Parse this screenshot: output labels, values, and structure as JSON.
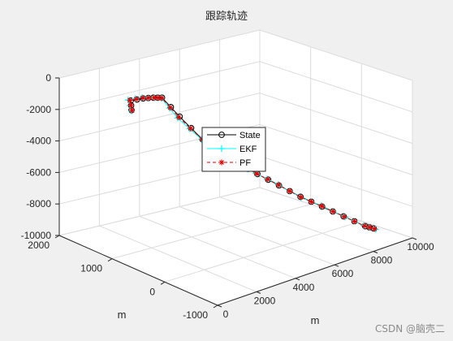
{
  "chart_data": {
    "type": "line3d",
    "title": "跟踪轨迹",
    "xlabel": "m",
    "ylabel": "m",
    "zlabel": "",
    "xlim": [
      0,
      10000
    ],
    "ylim": [
      -1000,
      2000
    ],
    "zlim": [
      -10000,
      0
    ],
    "x_ticks": [
      "0",
      "2000",
      "4000",
      "6000",
      "8000",
      "10000"
    ],
    "y_ticks": [
      "-1000",
      "0",
      "1000",
      "2000"
    ],
    "z_ticks": [
      "0",
      "-2000",
      "-4000",
      "-6000",
      "-8000",
      "-10000"
    ],
    "legend_position": "center",
    "series": [
      {
        "name": "State",
        "color": "#000000",
        "marker": "circle",
        "line": "solid",
        "points": [
          [
            1000,
            1000,
            -1000
          ],
          [
            1500,
            1200,
            -900
          ],
          [
            2000,
            1150,
            -900
          ],
          [
            2400,
            1100,
            -950
          ],
          [
            2700,
            1050,
            -1000
          ],
          [
            3200,
            900,
            -2200
          ],
          [
            3700,
            650,
            -3500
          ],
          [
            4300,
            500,
            -4400
          ],
          [
            5000,
            450,
            -5300
          ],
          [
            5700,
            350,
            -6100
          ],
          [
            6400,
            200,
            -6900
          ],
          [
            7100,
            50,
            -7700
          ],
          [
            7800,
            -100,
            -8400
          ],
          [
            8500,
            -250,
            -9100
          ],
          [
            9200,
            -400,
            -9800
          ],
          [
            9500,
            -450,
            -10000
          ]
        ]
      },
      {
        "name": "EKF",
        "color": "#00ffff",
        "marker": "plus",
        "line": "solid",
        "points": [
          [
            950,
            980,
            -1000
          ],
          [
            1450,
            1230,
            -880
          ],
          [
            2000,
            1170,
            -870
          ],
          [
            2400,
            1080,
            -930
          ],
          [
            2750,
            1080,
            -1100
          ],
          [
            3150,
            920,
            -2300
          ],
          [
            3700,
            670,
            -3520
          ],
          [
            4320,
            520,
            -4380
          ],
          [
            5020,
            430,
            -5320
          ],
          [
            5680,
            370,
            -6080
          ],
          [
            6420,
            220,
            -6880
          ],
          [
            7080,
            30,
            -7720
          ],
          [
            7820,
            -80,
            -8380
          ],
          [
            8520,
            -270,
            -9120
          ],
          [
            9180,
            -380,
            -9780
          ],
          [
            9550,
            -470,
            -10050
          ]
        ]
      },
      {
        "name": "PF",
        "color": "#e00000",
        "marker": "asterisk",
        "line": "dashed",
        "points": [
          [
            1000,
            990,
            -1000
          ],
          [
            1480,
            1210,
            -890
          ],
          [
            2010,
            1160,
            -890
          ],
          [
            2410,
            1090,
            -940
          ],
          [
            2720,
            1060,
            -1050
          ],
          [
            3180,
            910,
            -2250
          ],
          [
            3710,
            660,
            -3510
          ],
          [
            4310,
            510,
            -4390
          ],
          [
            5010,
            440,
            -5310
          ],
          [
            5690,
            360,
            -6090
          ],
          [
            6410,
            210,
            -6890
          ],
          [
            7090,
            40,
            -7710
          ],
          [
            7810,
            -90,
            -8390
          ],
          [
            8510,
            -260,
            -9110
          ],
          [
            9190,
            -390,
            -9790
          ],
          [
            9520,
            -460,
            -10020
          ]
        ]
      }
    ]
  },
  "watermark": "CSDN @脑壳二"
}
